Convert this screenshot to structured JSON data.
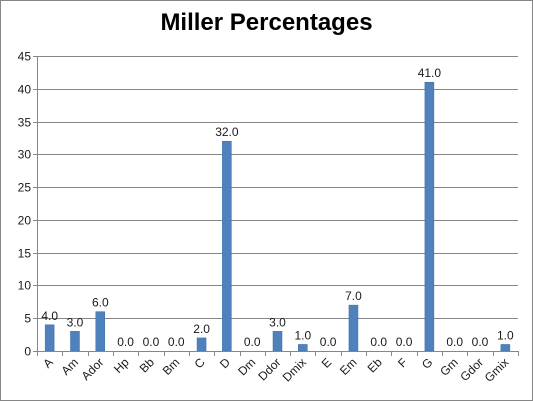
{
  "chart_data": {
    "type": "bar",
    "title": "Miller Percentages",
    "xlabel": "",
    "ylabel": "",
    "categories": [
      "A",
      "Am",
      "Ador",
      "Hp",
      "Bb",
      "Bm",
      "C",
      "D",
      "Dm",
      "Ddor",
      "Dmix",
      "E",
      "Em",
      "Eb",
      "F",
      "G",
      "Gm",
      "Gdor",
      "Gmix"
    ],
    "values": [
      4.0,
      3.0,
      6.0,
      0.0,
      0.0,
      0.0,
      2.0,
      32.0,
      0.0,
      3.0,
      1.0,
      0.0,
      7.0,
      0.0,
      0.0,
      41.0,
      0.0,
      0.0,
      1.0
    ],
    "data_labels": [
      "4.0",
      "3.0",
      "6.0",
      "0.0",
      "0.0",
      "0.0",
      "2.0",
      "32.0",
      "0.0",
      "3.0",
      "1.0",
      "0.0",
      "7.0",
      "0.0",
      "0.0",
      "41.0",
      "0.0",
      "0.0",
      "1.0"
    ],
    "y_ticks": [
      "0",
      "5",
      "10",
      "15",
      "20",
      "25",
      "30",
      "35",
      "40",
      "45"
    ],
    "ylim": [
      0,
      45
    ],
    "grid": true,
    "legend": "none",
    "colors": {
      "bar": "#4f81bd",
      "bar_edge": "#3a6ea5",
      "gridline": "#868686",
      "axis": "#868686"
    }
  }
}
